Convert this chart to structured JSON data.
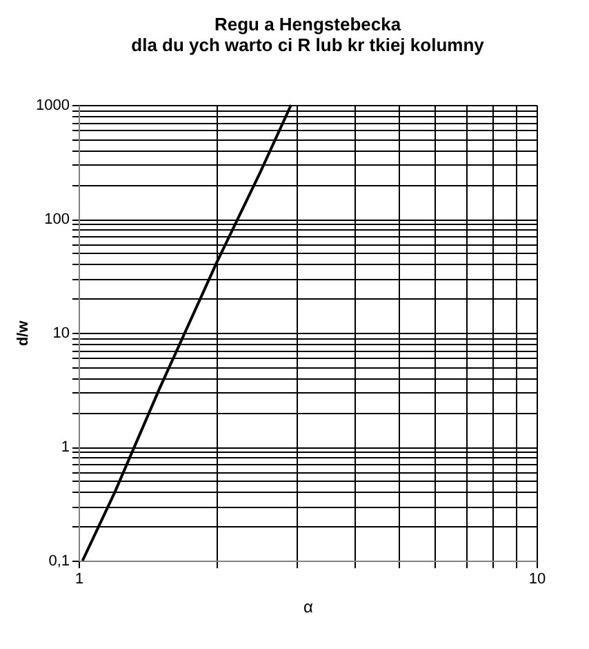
{
  "chart_data": {
    "type": "line",
    "title": "Regu a Hengstebecka\ndla du  ych warto  ci R lub kr  tkiej kolumny",
    "xlabel": "α",
    "ylabel": "d/w",
    "log": "xy",
    "grid": true,
    "marker": "none",
    "line_style": "solid",
    "xlim": [
      1,
      10
    ],
    "ylim": [
      0.1,
      1000
    ],
    "xticks": [
      1,
      {
        "value": 2,
        "label": null
      },
      {
        "value": 3,
        "label": null
      },
      {
        "value": 4,
        "label": null
      },
      {
        "value": 5,
        "label": null
      },
      {
        "value": 6,
        "label": null
      },
      {
        "value": 7,
        "label": null
      },
      {
        "value": 8,
        "label": null
      },
      {
        "value": 9,
        "label": null
      },
      10
    ],
    "yticks": [
      {
        "value": 0.1,
        "label": "0,1"
      },
      {
        "value": 0.2,
        "label": null
      },
      {
        "value": 0.3,
        "label": null
      },
      {
        "value": 0.4,
        "label": null
      },
      {
        "value": 0.5,
        "label": null
      },
      {
        "value": 0.6,
        "label": null
      },
      {
        "value": 0.7,
        "label": null
      },
      {
        "value": 0.8,
        "label": null
      },
      {
        "value": 0.9,
        "label": null
      },
      1,
      {
        "value": 2,
        "label": null
      },
      {
        "value": 3,
        "label": null
      },
      {
        "value": 4,
        "label": null
      },
      {
        "value": 5,
        "label": null
      },
      {
        "value": 6,
        "label": null
      },
      {
        "value": 7,
        "label": null
      },
      {
        "value": 8,
        "label": null
      },
      {
        "value": 9,
        "label": null
      },
      10,
      {
        "value": 20,
        "label": null
      },
      {
        "value": 30,
        "label": null
      },
      {
        "value": 40,
        "label": null
      },
      {
        "value": 50,
        "label": null
      },
      {
        "value": 60,
        "label": null
      },
      {
        "value": 70,
        "label": null
      },
      {
        "value": 80,
        "label": null
      },
      {
        "value": 90,
        "label": null
      },
      100,
      {
        "value": 200,
        "label": null
      },
      {
        "value": 300,
        "label": null
      },
      {
        "value": 400,
        "label": null
      },
      {
        "value": 500,
        "label": null
      },
      {
        "value": 600,
        "label": null
      },
      {
        "value": 700,
        "label": null
      },
      {
        "value": 800,
        "label": null
      },
      {
        "value": 900,
        "label": null
      },
      1000
    ],
    "series": [
      {
        "color": "#000000",
        "x": [
          1.02,
          1.2,
          1.5,
          2,
          2.5,
          2.91
        ],
        "values": [
          0.1,
          0.4,
          3.2,
          41,
          263,
          1000
        ]
      }
    ]
  }
}
